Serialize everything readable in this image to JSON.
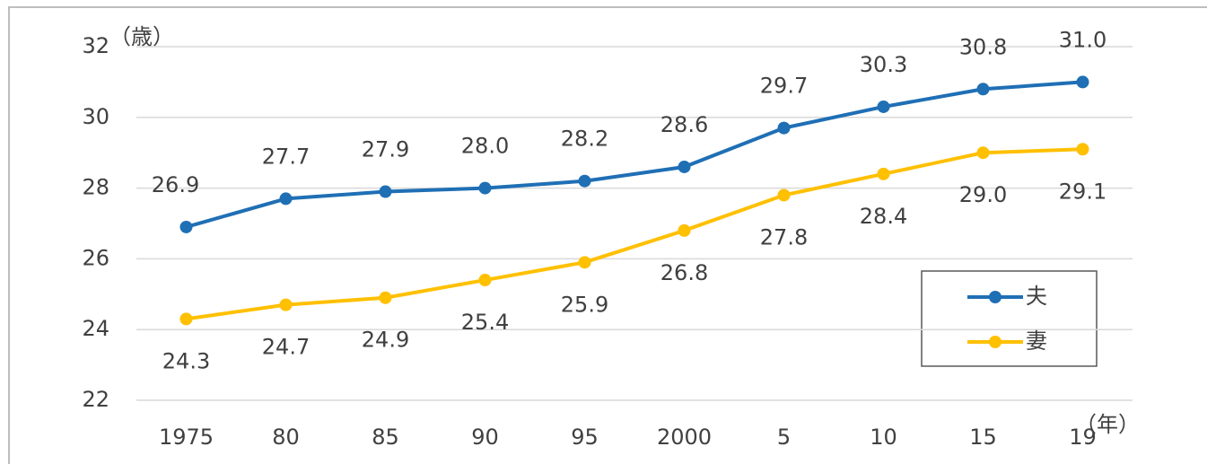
{
  "chart_data": {
    "type": "line",
    "y_unit_label": "（歳）",
    "x_unit_label": "（年）",
    "categories": [
      "1975",
      "80",
      "85",
      "90",
      "95",
      "2000",
      "5",
      "10",
      "15",
      "19"
    ],
    "series": [
      {
        "name": "夫",
        "color": "#1f6fb5",
        "values": [
          26.9,
          27.7,
          27.9,
          28.0,
          28.2,
          28.6,
          29.7,
          30.3,
          30.8,
          31.0
        ],
        "value_labels": [
          "26.9",
          "27.7",
          "27.9",
          "28.0",
          "28.2",
          "28.6",
          "29.7",
          "30.3",
          "30.8",
          "31.0"
        ]
      },
      {
        "name": "妻",
        "color": "#ffc000",
        "values": [
          24.3,
          24.7,
          24.9,
          25.4,
          25.9,
          26.8,
          27.8,
          28.4,
          29.0,
          29.1
        ],
        "value_labels": [
          "24.3",
          "24.7",
          "24.9",
          "25.4",
          "25.9",
          "26.8",
          "27.8",
          "28.4",
          "29.0",
          "29.1"
        ]
      }
    ],
    "ylim": [
      22,
      32
    ],
    "yticks": [
      22,
      24,
      26,
      28,
      30,
      32
    ],
    "grid": true
  }
}
